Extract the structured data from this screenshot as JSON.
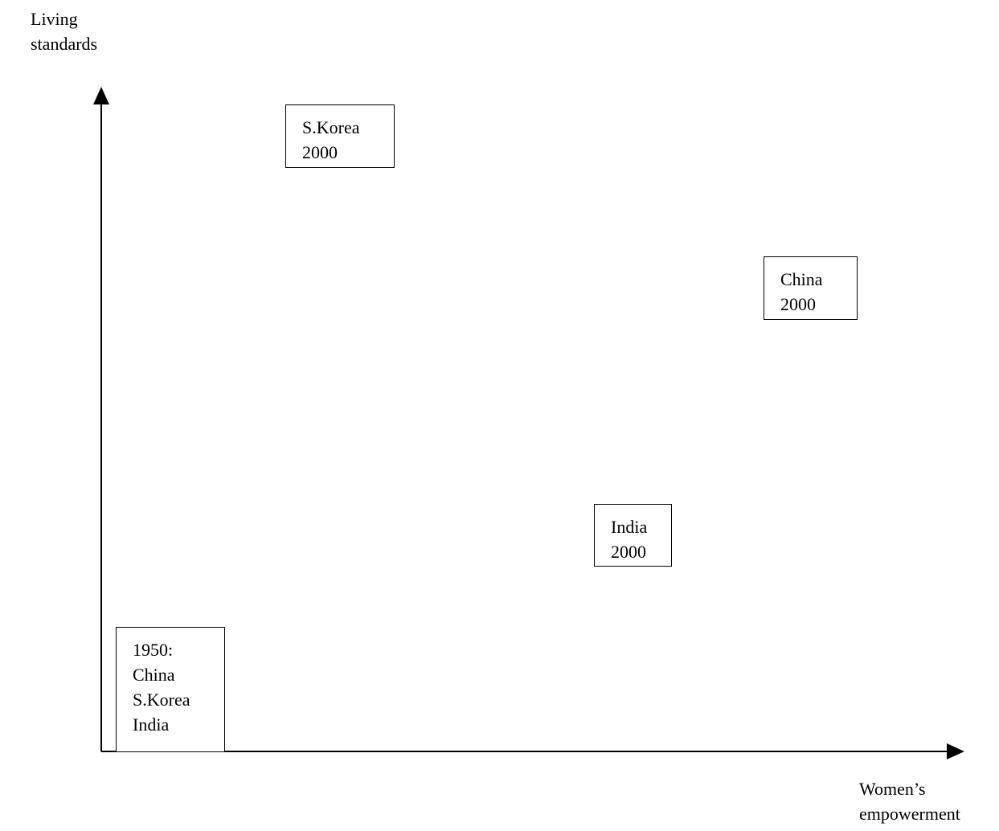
{
  "axes": {
    "y_label": [
      "Living",
      "standards"
    ],
    "x_label": [
      "Women’s",
      "empowerment"
    ]
  },
  "boxes": {
    "skorea2000": [
      "S.Korea",
      "2000"
    ],
    "china2000": [
      "China",
      "2000"
    ],
    "india2000": [
      "India",
      "2000"
    ],
    "y1950": [
      "1950:",
      "China",
      "S.Korea",
      "India"
    ]
  }
}
